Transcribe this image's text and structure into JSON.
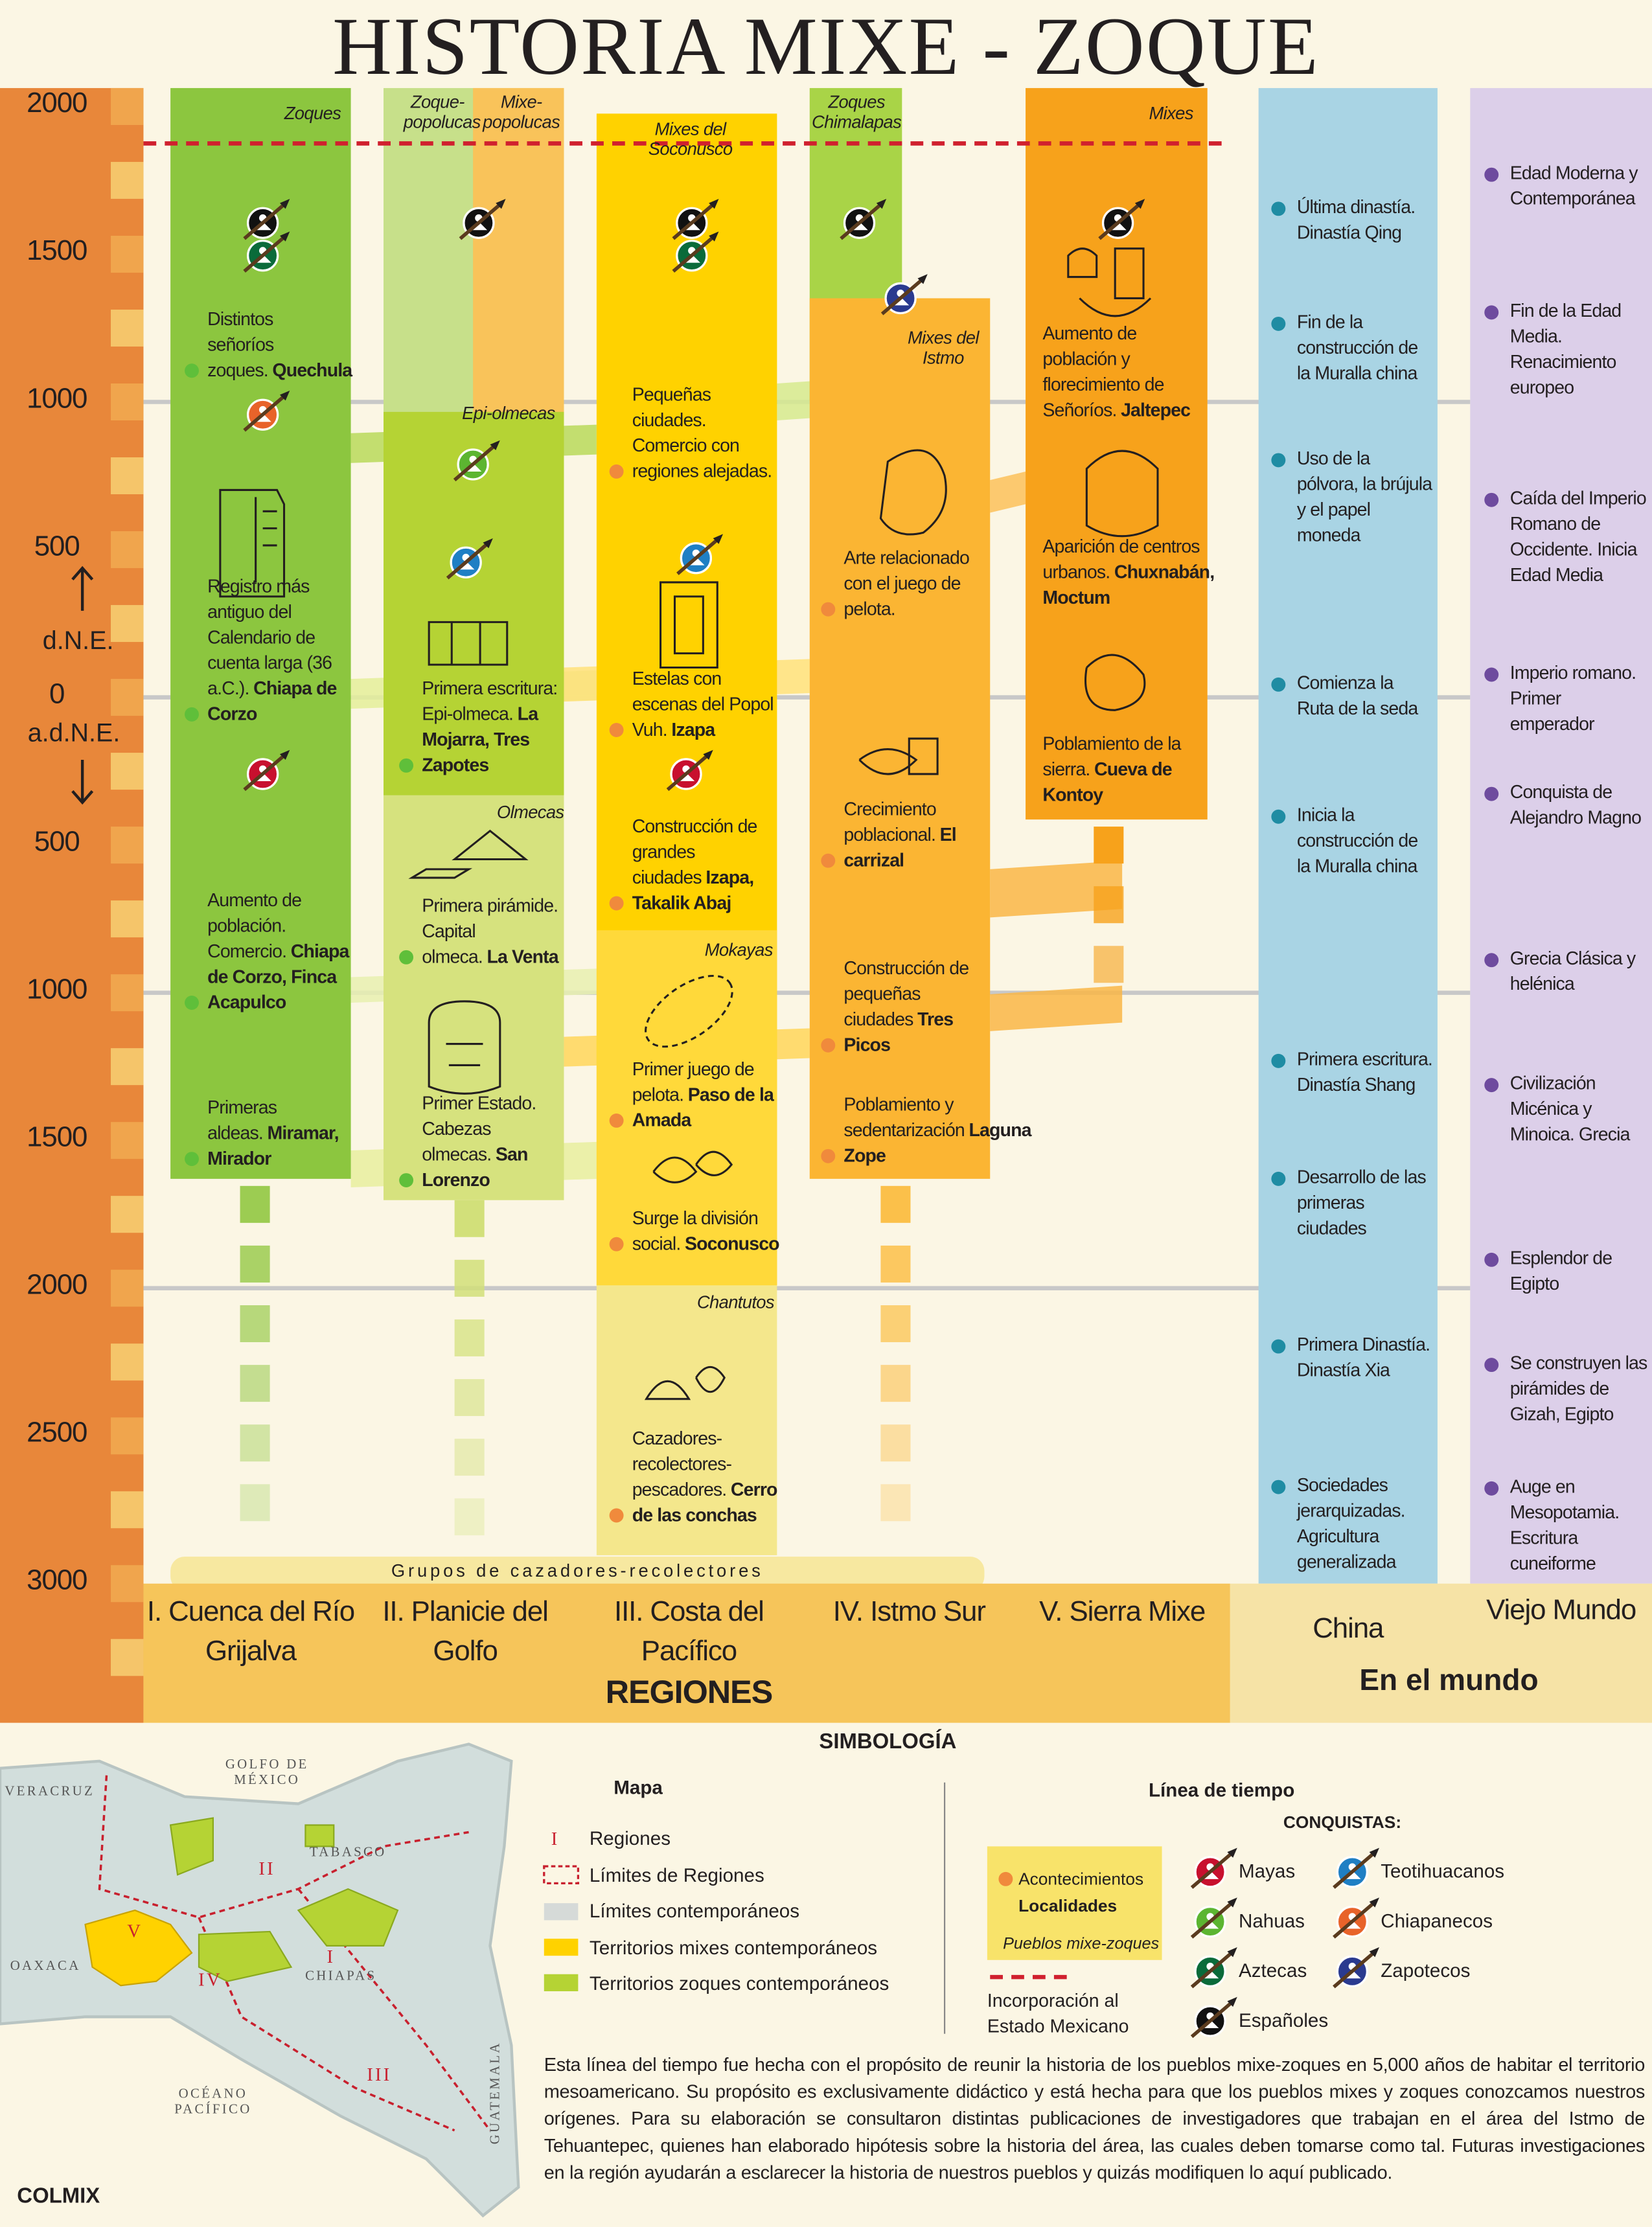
{
  "title": "HISTORIA MIXE - ZOQUE",
  "axis": {
    "ticks": [
      "2000",
      "1500",
      "1000",
      "500",
      "0",
      "500",
      "1000",
      "1500",
      "2000",
      "2500",
      "3000"
    ],
    "after": "d.N.E.",
    "before": "a.d.N.E."
  },
  "groups": [
    "Zoques",
    "Zoque-popolucas",
    "Mixe-popolucas",
    "Mixes del Soconusco",
    "Zoques Chimalapas",
    "Mixes",
    "Epi-olmecas",
    "Olmecas",
    "Mixes del Istmo",
    "Mokayas",
    "Chantutos"
  ],
  "hunters_band": "Grupos de cazadores-recolectores",
  "regions": {
    "items": [
      "I. Cuenca del Río Grijalva",
      "II. Planicie del Golfo",
      "III. Costa del Pacífico",
      "IV. Istmo Sur",
      "V. Sierra Mixe"
    ],
    "label": "REGIONES"
  },
  "world": {
    "items": [
      "China",
      "Viejo Mundo"
    ],
    "label": "En el mundo"
  },
  "columns": [
    {
      "events": [
        {
          "text": "Distintos señoríos zoques.",
          "place": "Quechula"
        },
        {
          "text": "Registro más antiguo del Calendario de cuenta larga (36 a.C.).",
          "place": "Chiapa de Corzo"
        },
        {
          "text": "Aumento de población. Comercio.",
          "place": "Chiapa de Corzo, Finca Acapulco"
        },
        {
          "text": "Primeras aldeas.",
          "place": "Miramar, Mirador"
        }
      ]
    },
    {
      "events": [
        {
          "text": "Primera escritura: Epi-olmeca.",
          "place": "La Mojarra, Tres Zapotes"
        },
        {
          "text": "Primera pirámide. Capital olmeca.",
          "place": "La Venta"
        },
        {
          "text": "Primer Estado. Cabezas olmecas.",
          "place": "San Lorenzo"
        }
      ]
    },
    {
      "events": [
        {
          "text": "Pequeñas ciudades. Comercio con regiones alejadas."
        },
        {
          "text": "Estelas con escenas del Popol Vuh.",
          "place": "Izapa"
        },
        {
          "text": "Construcción de grandes ciudades",
          "place": "Izapa, Takalik Abaj"
        },
        {
          "text": "Primer juego de pelota.",
          "place": "Paso de la Amada"
        },
        {
          "text": "Surge la división social.",
          "place": "Soconusco"
        },
        {
          "text": "Cazadores-recolectores-pescadores.",
          "place": "Cerro de las conchas"
        }
      ]
    },
    {
      "events": [
        {
          "text": "Arte relacionado con el juego de pelota."
        },
        {
          "text": "Crecimiento poblacional.",
          "place": "El carrizal"
        },
        {
          "text": "Construcción de pequeñas ciudades",
          "place": "Tres Picos"
        },
        {
          "text": "Poblamiento y sedentarización",
          "place": "Laguna Zope"
        }
      ]
    },
    {
      "events": [
        {
          "text": "Aumento de población y florecimiento de Señoríos.",
          "place": "Jaltepec"
        },
        {
          "text": "Aparición de centros urbanos.",
          "place": "Chuxnabán, Moctum"
        },
        {
          "text": "Poblamiento de la sierra.",
          "place": "Cueva de Kontoy"
        }
      ]
    }
  ],
  "china": [
    "Última dinastía. Dinastía Qing",
    "Fin de la construcción de la Muralla china",
    "Uso de la pólvora, la brújula y el papel moneda",
    "Comienza la Ruta de la seda",
    "Inicia la construcción de la Muralla china",
    "Primera escritura. Dinastía Shang",
    "Desarrollo de las primeras ciudades",
    "Primera Dinastía. Dinastía Xia",
    "Sociedades jerarquizadas. Agricultura generalizada"
  ],
  "old_world": [
    "Edad Moderna y Contemporánea",
    "Fin de la Edad Media. Renacimiento europeo",
    "Caída del Imperio Romano de Occidente. Inicia Edad Media",
    "Imperio romano. Primer emperador",
    "Conquista de Alejandro Magno",
    "Grecia Clásica y helénica",
    "Civilización Micénica y Minoica. Grecia",
    "Esplendor de Egipto",
    "Se construyen las pirámides de Gizah, Egipto",
    "Auge en Mesopotamia. Escritura cuneiforme"
  ],
  "legend": {
    "title": "SIMBOLOGÍA",
    "map": {
      "title": "Mapa",
      "region_symbol": "I",
      "items": [
        "Regiones",
        "Límites de Regiones",
        "Límites contemporáneos",
        "Territorios mixes contemporáneos",
        "Territorios zoques contemporáneos"
      ]
    },
    "timeline": {
      "title": "Línea de tiempo",
      "conquests_title": "CONQUISTAS:",
      "conquests": [
        "Mayas",
        "Teotihuacanos",
        "Nahuas",
        "Chiapanecos",
        "Aztecas",
        "Zapotecos",
        "Españoles"
      ],
      "box": {
        "events": "Acontecimientos",
        "places": "Localidades",
        "peoples": "Pueblos mixe-zoques"
      },
      "incorporation": "Incorporación al Estado Mexicano"
    }
  },
  "map": {
    "labels": [
      "GOLFO DE MÉXICO",
      "VERACRUZ",
      "TABASCO",
      "OAXACA",
      "CHIAPAS",
      "GUATEMALA",
      "OCÉANO PACÍFICO",
      "I",
      "II",
      "III",
      "IV",
      "V"
    ]
  },
  "note": "Esta línea del tiempo fue hecha con el propósito de reunir la historia de los pueblos mixe-zoques en 5,000 años de habitar el territorio mesoamericano. Su propósito es exclusivamente didáctico y está hecha para que los pueblos mixes y zoques conozcamos nuestros orígenes. Para su elaboración se consultaron distintas publicaciones de investigadores que trabajan en el área del Istmo de Tehuantepec, quienes han elaborado hipótesis sobre la historia del área, las cuales deben tomarse como tal. Futuras investigaciones en la región ayudarán a esclarecer la historia de nuestros pueblos y quizás modifiquen lo aquí publicado.",
  "credit": "COLMIX"
}
